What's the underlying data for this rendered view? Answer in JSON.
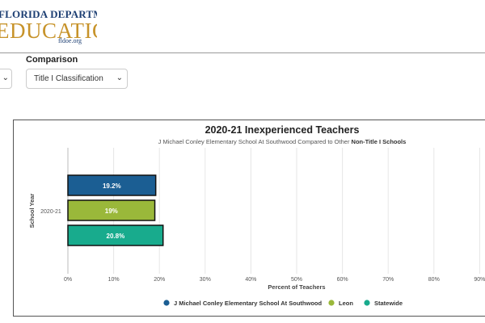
{
  "header": {
    "logo_line1": "FLORIDA DEPARTMENT OF",
    "logo_line2": "EDUCATION",
    "logo_line3": "fldoe.org"
  },
  "controls": {
    "comparison_label": "Comparison",
    "comparison_value": "Title I Classification"
  },
  "chart_data": {
    "type": "bar",
    "orientation": "horizontal",
    "title": "2020-21 Inexperienced Teachers",
    "subtitle_prefix": "J Michael Conley Elementary School At Southwood Compared to Other ",
    "subtitle_bold": "Non-Title I Schools",
    "ylabel": "School Year",
    "xlabel": "Percent of Teachers",
    "categories": [
      "2020-21"
    ],
    "series": [
      {
        "name": "J Michael Conley Elementary School At Southwood",
        "values": [
          19.2
        ],
        "label": "19.2%",
        "color": "#1b5e93"
      },
      {
        "name": "Leon",
        "values": [
          19
        ],
        "label": "19%",
        "color": "#9ab83a"
      },
      {
        "name": "Statewide",
        "values": [
          20.8
        ],
        "label": "20.8%",
        "color": "#18ab8d"
      }
    ],
    "xlim": [
      0,
      90
    ],
    "xticks": [
      "0%",
      "10%",
      "20%",
      "30%",
      "40%",
      "50%",
      "60%",
      "70%",
      "80%",
      "90%"
    ],
    "grid": true,
    "legend_position": "bottom"
  }
}
